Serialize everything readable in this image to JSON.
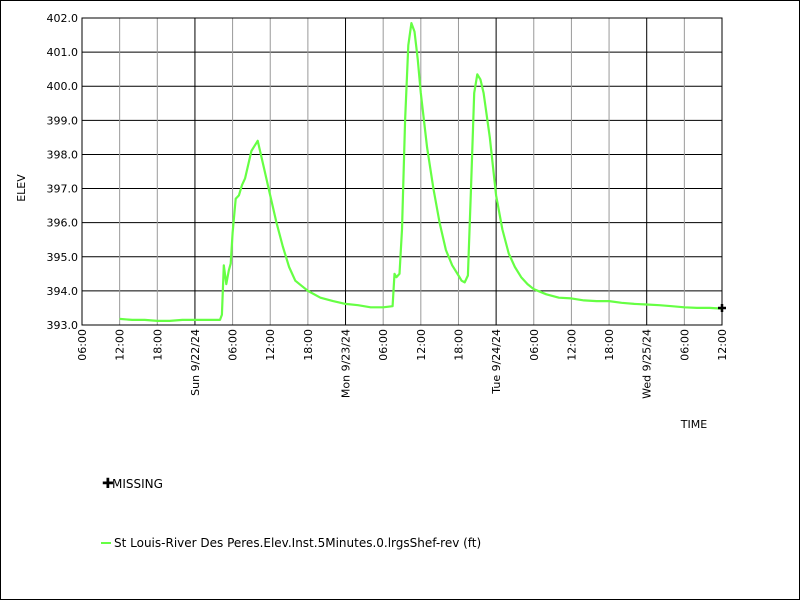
{
  "chart_data": {
    "type": "line",
    "ylabel": "ELEV",
    "xlabel": "TIME",
    "ylim": [
      393.0,
      402.0
    ],
    "y_ticks": [
      "393.0",
      "394.0",
      "395.0",
      "396.0",
      "397.0",
      "398.0",
      "399.0",
      "400.0",
      "401.0",
      "402.0"
    ],
    "x_range_hours": [
      0,
      102
    ],
    "x_ticks": [
      {
        "h": 0,
        "label": "06:00",
        "major": false
      },
      {
        "h": 6,
        "label": "12:00",
        "major": false
      },
      {
        "h": 12,
        "label": "18:00",
        "major": false
      },
      {
        "h": 18,
        "label": "Sun 9/22/24",
        "major": true
      },
      {
        "h": 24,
        "label": "06:00",
        "major": false
      },
      {
        "h": 30,
        "label": "12:00",
        "major": false
      },
      {
        "h": 36,
        "label": "18:00",
        "major": false
      },
      {
        "h": 42,
        "label": "Mon 9/23/24",
        "major": true
      },
      {
        "h": 48,
        "label": "06:00",
        "major": false
      },
      {
        "h": 54,
        "label": "12:00",
        "major": false
      },
      {
        "h": 60,
        "label": "18:00",
        "major": false
      },
      {
        "h": 66,
        "label": "Tue 9/24/24",
        "major": true
      },
      {
        "h": 72,
        "label": "06:00",
        "major": false
      },
      {
        "h": 78,
        "label": "12:00",
        "major": false
      },
      {
        "h": 84,
        "label": "18:00",
        "major": false
      },
      {
        "h": 90,
        "label": "Wed 9/25/24",
        "major": true
      },
      {
        "h": 96,
        "label": "06:00",
        "major": false
      },
      {
        "h": 102,
        "label": "12:00",
        "major": false
      }
    ],
    "grid": true,
    "legend_position": "bottom-left",
    "series": [
      {
        "name": "St Louis-River Des Peres.Elev.Inst.5Minutes.0.lrgsShef-rev (ft)",
        "color": "#66ff44",
        "x_hours": [
          6,
          8,
          10,
          12,
          14,
          16,
          18,
          20,
          22,
          22.3,
          22.6,
          23,
          23.4,
          23.7,
          24,
          24.5,
          25,
          25.5,
          26,
          27,
          28,
          29,
          30,
          31,
          32,
          33,
          34,
          35,
          36,
          38,
          40,
          42,
          44,
          46,
          48,
          49.5,
          49.8,
          50.1,
          50.6,
          51,
          51.5,
          52,
          52.5,
          53,
          53.5,
          54,
          55,
          56,
          57,
          58,
          59,
          60,
          60.5,
          61,
          61.5,
          62,
          62.5,
          63,
          63.5,
          64,
          65,
          66,
          67,
          68,
          69,
          70,
          71,
          72,
          74,
          76,
          78,
          80,
          82,
          84,
          86,
          88,
          90,
          92,
          94,
          96,
          98,
          100,
          102
        ],
        "values": [
          393.18,
          393.15,
          393.15,
          393.12,
          393.12,
          393.15,
          393.15,
          393.15,
          393.15,
          393.3,
          394.75,
          394.2,
          394.6,
          394.8,
          395.7,
          396.7,
          396.8,
          397.1,
          397.3,
          398.1,
          398.4,
          397.6,
          396.8,
          396.0,
          395.3,
          394.7,
          394.3,
          394.15,
          394.0,
          393.8,
          393.7,
          393.62,
          393.58,
          393.52,
          393.52,
          393.55,
          394.5,
          394.4,
          394.5,
          395.8,
          399.0,
          401.2,
          401.85,
          401.6,
          400.8,
          399.8,
          398.2,
          397.0,
          396.0,
          395.2,
          394.75,
          394.45,
          394.3,
          394.25,
          394.45,
          397.0,
          399.8,
          400.35,
          400.2,
          399.8,
          398.5,
          396.8,
          395.8,
          395.1,
          394.7,
          394.4,
          394.2,
          394.05,
          393.9,
          393.8,
          393.78,
          393.72,
          393.7,
          393.7,
          393.65,
          393.62,
          393.6,
          393.58,
          393.55,
          393.52,
          393.5,
          393.5,
          393.48
        ]
      }
    ],
    "missing_points": [
      {
        "x_hours": 102,
        "value": 393.5
      }
    ]
  },
  "legend": {
    "missing_label": "MISSING",
    "series_label": "St Louis-River Des Peres.Elev.Inst.5Minutes.0.lrgsShef-rev (ft)"
  }
}
